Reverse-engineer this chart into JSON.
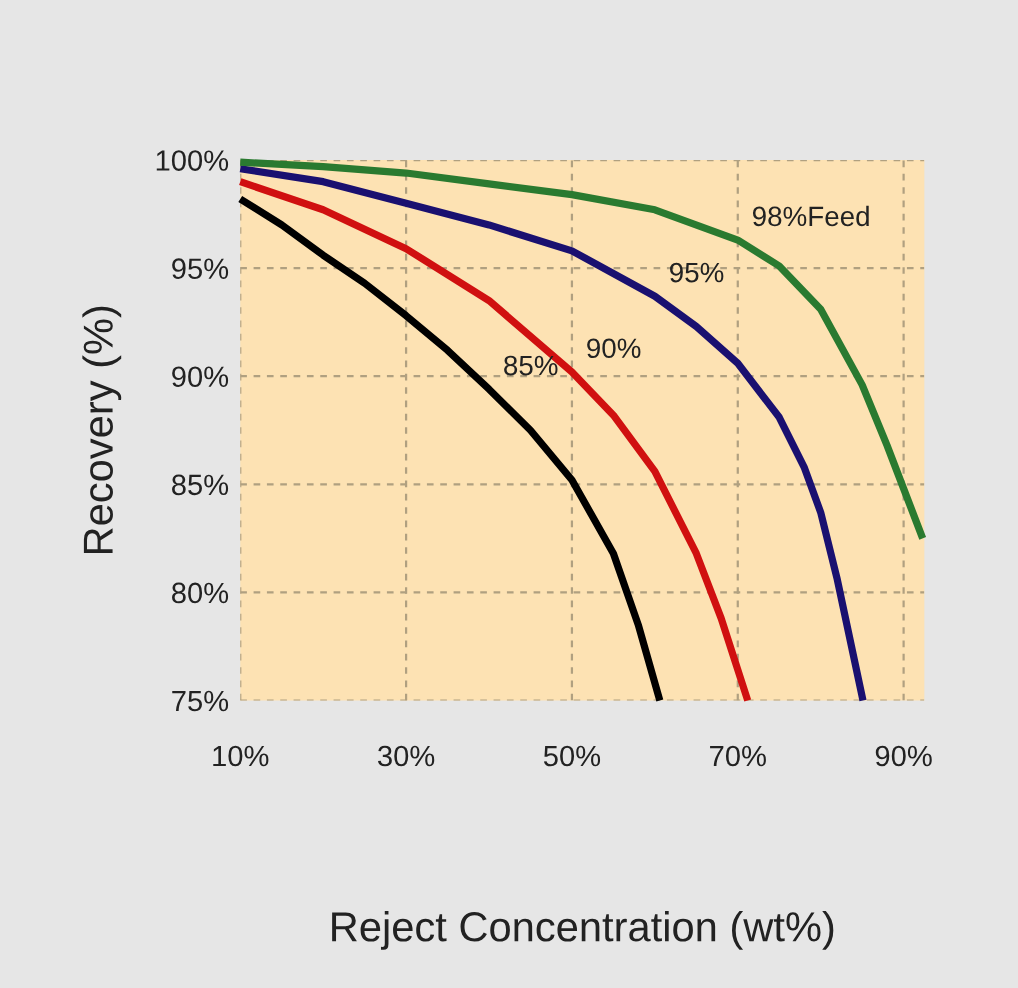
{
  "chart_data": {
    "type": "line",
    "xlabel": "Reject Concentration (wt%)",
    "ylabel": "Recovery (%)",
    "xlim": [
      10,
      92.5
    ],
    "ylim": [
      75,
      100
    ],
    "xticks": [
      {
        "value": 10,
        "label": "10%"
      },
      {
        "value": 30,
        "label": "30%"
      },
      {
        "value": 50,
        "label": "50%"
      },
      {
        "value": 70,
        "label": "70%"
      },
      {
        "value": 90,
        "label": "90%"
      }
    ],
    "yticks": [
      {
        "value": 75,
        "label": "75%"
      },
      {
        "value": 80,
        "label": "80%"
      },
      {
        "value": 85,
        "label": "85%"
      },
      {
        "value": 90,
        "label": "90%"
      },
      {
        "value": 95,
        "label": "95%"
      },
      {
        "value": 100,
        "label": "100%"
      }
    ],
    "grid": true,
    "marker": "none",
    "line_style": "solid",
    "series": [
      {
        "color": "#000000",
        "x": [
          10,
          15,
          20,
          25,
          30,
          35,
          40,
          45,
          50,
          55,
          58,
          60.6
        ],
        "values": [
          98.2,
          97.0,
          95.6,
          94.3,
          92.8,
          91.2,
          89.4,
          87.5,
          85.2,
          81.8,
          78.5,
          75
        ]
      },
      {
        "color": "#d01010",
        "x": [
          10,
          20,
          30,
          40,
          50,
          55,
          60,
          65,
          68,
          71.2
        ],
        "values": [
          99.0,
          97.7,
          95.9,
          93.5,
          90.2,
          88.2,
          85.6,
          81.8,
          78.8,
          75
        ]
      },
      {
        "color": "#1a1070",
        "x": [
          10,
          20,
          30,
          40,
          50,
          60,
          65,
          70,
          75,
          78,
          80,
          82,
          85.1
        ],
        "values": [
          99.6,
          99.0,
          98.0,
          97.0,
          95.8,
          93.7,
          92.3,
          90.6,
          88.1,
          85.8,
          83.7,
          80.6,
          75
        ]
      },
      {
        "color": "#2a7a30",
        "x": [
          10,
          20,
          30,
          40,
          50,
          60,
          70,
          75,
          80,
          85,
          88,
          90,
          92.3
        ],
        "values": [
          99.9,
          99.7,
          99.4,
          98.9,
          98.4,
          97.7,
          96.3,
          95.1,
          93.1,
          89.6,
          86.8,
          84.8,
          82.5
        ]
      }
    ],
    "annotations": [
      {
        "text": "85%",
        "x": 40,
        "y": 89.4
      },
      {
        "text": "90%",
        "x": 50,
        "y": 90.2
      },
      {
        "text": "95%",
        "x": 60,
        "y": 93.7
      },
      {
        "text": "98%Feed",
        "x": 70,
        "y": 96.3
      }
    ]
  }
}
